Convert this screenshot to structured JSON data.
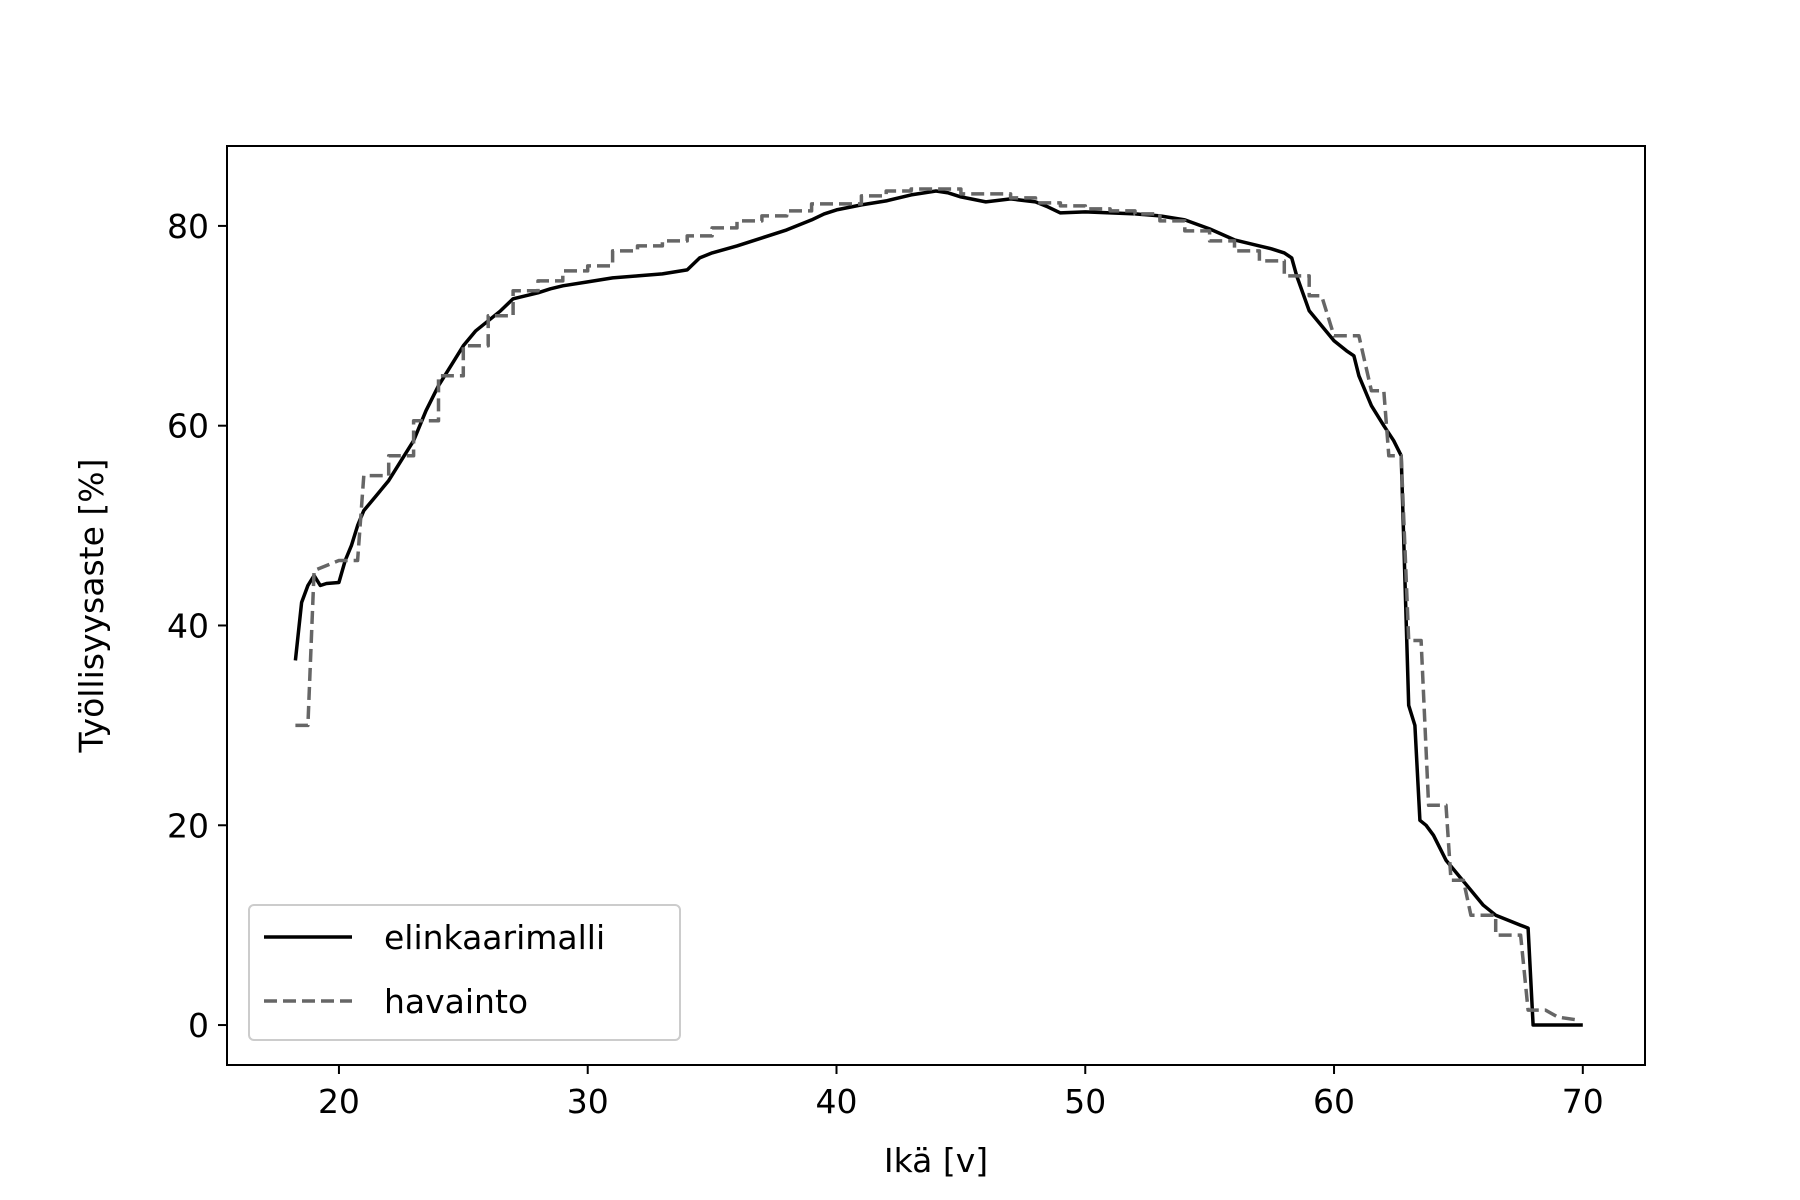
{
  "chart_data": {
    "type": "line",
    "xlabel": "Ikä [v]",
    "ylabel": "Työllisyysaste [%]",
    "xlim": [
      15.5,
      72.5
    ],
    "ylim": [
      -4,
      88
    ],
    "xticks": [
      20,
      30,
      40,
      50,
      60,
      70
    ],
    "yticks": [
      0,
      20,
      40,
      60,
      80
    ],
    "grid": false,
    "legend_position": "lower-left",
    "series": [
      {
        "name": "elinkaarimalli",
        "color": "#000000",
        "style": "solid",
        "points": [
          [
            18.25,
            36.5
          ],
          [
            18.5,
            42.3
          ],
          [
            18.75,
            44.0
          ],
          [
            19.0,
            45.0
          ],
          [
            19.25,
            44.0
          ],
          [
            19.5,
            44.2
          ],
          [
            20.0,
            44.3
          ],
          [
            20.25,
            46.5
          ],
          [
            20.5,
            48.0
          ],
          [
            20.75,
            50.0
          ],
          [
            21.0,
            51.5
          ],
          [
            21.5,
            53.0
          ],
          [
            22.0,
            54.5
          ],
          [
            22.5,
            56.5
          ],
          [
            23.0,
            58.5
          ],
          [
            23.5,
            61.5
          ],
          [
            24.0,
            64.0
          ],
          [
            24.5,
            66.0
          ],
          [
            25.0,
            68.0
          ],
          [
            25.5,
            69.5
          ],
          [
            26.0,
            70.5
          ],
          [
            26.5,
            71.5
          ],
          [
            27.0,
            72.7
          ],
          [
            27.5,
            73.0
          ],
          [
            28.0,
            73.3
          ],
          [
            28.5,
            73.7
          ],
          [
            29.0,
            74.0
          ],
          [
            30.0,
            74.4
          ],
          [
            31.0,
            74.8
          ],
          [
            32.0,
            75.0
          ],
          [
            33.0,
            75.2
          ],
          [
            34.0,
            75.6
          ],
          [
            34.5,
            76.8
          ],
          [
            35.0,
            77.3
          ],
          [
            36.0,
            78.0
          ],
          [
            37.0,
            78.8
          ],
          [
            38.0,
            79.6
          ],
          [
            39.0,
            80.6
          ],
          [
            39.5,
            81.2
          ],
          [
            40.0,
            81.6
          ],
          [
            41.0,
            82.1
          ],
          [
            42.0,
            82.5
          ],
          [
            43.0,
            83.1
          ],
          [
            44.0,
            83.5
          ],
          [
            44.5,
            83.3
          ],
          [
            45.0,
            82.9
          ],
          [
            46.0,
            82.4
          ],
          [
            47.0,
            82.7
          ],
          [
            48.0,
            82.4
          ],
          [
            48.5,
            81.9
          ],
          [
            49.0,
            81.3
          ],
          [
            50.0,
            81.4
          ],
          [
            51.0,
            81.3
          ],
          [
            52.0,
            81.2
          ],
          [
            53.0,
            81.0
          ],
          [
            54.0,
            80.6
          ],
          [
            55.0,
            79.7
          ],
          [
            56.0,
            78.6
          ],
          [
            57.0,
            78.0
          ],
          [
            57.5,
            77.7
          ],
          [
            58.0,
            77.3
          ],
          [
            58.3,
            76.8
          ],
          [
            58.5,
            75.0
          ],
          [
            59.0,
            71.5
          ],
          [
            60.0,
            68.5
          ],
          [
            60.5,
            67.5
          ],
          [
            60.8,
            67.0
          ],
          [
            61.0,
            65.0
          ],
          [
            61.5,
            62.0
          ],
          [
            62.0,
            60.0
          ],
          [
            62.4,
            58.5
          ],
          [
            62.7,
            57.0
          ],
          [
            63.0,
            32.0
          ],
          [
            63.25,
            30.0
          ],
          [
            63.45,
            20.5
          ],
          [
            63.7,
            20.0
          ],
          [
            64.0,
            19.0
          ],
          [
            64.5,
            16.5
          ],
          [
            65.0,
            15.0
          ],
          [
            65.5,
            13.5
          ],
          [
            66.0,
            12.0
          ],
          [
            66.5,
            11.0
          ],
          [
            67.0,
            10.5
          ],
          [
            67.5,
            10.0
          ],
          [
            67.8,
            9.7
          ],
          [
            68.0,
            0.0
          ],
          [
            68.5,
            0.0
          ],
          [
            70.0,
            0.0
          ]
        ]
      },
      {
        "name": "havainto",
        "color": "#666666",
        "style": "dashed",
        "points": [
          [
            18.25,
            30.0
          ],
          [
            18.75,
            30.0
          ],
          [
            19.0,
            45.5
          ],
          [
            20.0,
            46.5
          ],
          [
            20.75,
            46.5
          ],
          [
            21.0,
            55.0
          ],
          [
            22.0,
            55.0
          ],
          [
            22.0,
            57.0
          ],
          [
            23.0,
            57.0
          ],
          [
            23.0,
            60.5
          ],
          [
            24.0,
            60.5
          ],
          [
            24.0,
            65.0
          ],
          [
            25.0,
            65.0
          ],
          [
            25.0,
            68.0
          ],
          [
            26.0,
            68.0
          ],
          [
            26.0,
            71.0
          ],
          [
            27.0,
            71.0
          ],
          [
            27.0,
            73.5
          ],
          [
            28.0,
            73.5
          ],
          [
            28.0,
            74.5
          ],
          [
            29.0,
            74.5
          ],
          [
            29.0,
            75.5
          ],
          [
            30.0,
            75.5
          ],
          [
            30.0,
            76.0
          ],
          [
            31.0,
            76.0
          ],
          [
            31.0,
            77.5
          ],
          [
            32.0,
            77.5
          ],
          [
            32.0,
            78.0
          ],
          [
            33.0,
            78.0
          ],
          [
            33.0,
            78.5
          ],
          [
            34.0,
            78.5
          ],
          [
            34.0,
            79.0
          ],
          [
            35.0,
            79.0
          ],
          [
            35.0,
            79.8
          ],
          [
            36.0,
            79.8
          ],
          [
            36.0,
            80.5
          ],
          [
            37.0,
            80.5
          ],
          [
            37.0,
            81.0
          ],
          [
            38.0,
            81.0
          ],
          [
            38.0,
            81.5
          ],
          [
            39.0,
            81.5
          ],
          [
            39.0,
            82.2
          ],
          [
            41.0,
            82.2
          ],
          [
            41.0,
            83.0
          ],
          [
            42.0,
            83.0
          ],
          [
            42.0,
            83.5
          ],
          [
            43.0,
            83.5
          ],
          [
            43.0,
            83.7
          ],
          [
            45.0,
            83.7
          ],
          [
            45.0,
            83.2
          ],
          [
            47.0,
            83.2
          ],
          [
            47.0,
            82.8
          ],
          [
            48.0,
            82.8
          ],
          [
            48.0,
            82.3
          ],
          [
            49.0,
            82.3
          ],
          [
            49.0,
            82.0
          ],
          [
            50.0,
            82.0
          ],
          [
            50.0,
            81.7
          ],
          [
            51.0,
            81.7
          ],
          [
            51.0,
            81.5
          ],
          [
            52.0,
            81.5
          ],
          [
            52.0,
            81.2
          ],
          [
            53.0,
            81.2
          ],
          [
            53.0,
            80.5
          ],
          [
            54.0,
            80.5
          ],
          [
            54.0,
            79.5
          ],
          [
            55.0,
            79.5
          ],
          [
            55.0,
            78.5
          ],
          [
            56.0,
            78.5
          ],
          [
            56.0,
            77.5
          ],
          [
            57.0,
            77.5
          ],
          [
            57.0,
            76.5
          ],
          [
            58.0,
            76.5
          ],
          [
            58.0,
            75.0
          ],
          [
            59.0,
            75.0
          ],
          [
            59.0,
            73.0
          ],
          [
            59.5,
            73.0
          ],
          [
            60.0,
            69.0
          ],
          [
            61.0,
            69.0
          ],
          [
            61.5,
            63.5
          ],
          [
            62.0,
            63.5
          ],
          [
            62.2,
            57.0
          ],
          [
            62.7,
            57.0
          ],
          [
            63.0,
            38.5
          ],
          [
            63.5,
            38.5
          ],
          [
            63.8,
            22.0
          ],
          [
            64.5,
            22.0
          ],
          [
            64.7,
            14.5
          ],
          [
            65.2,
            14.5
          ],
          [
            65.5,
            11.0
          ],
          [
            66.5,
            11.0
          ],
          [
            66.5,
            9.0
          ],
          [
            67.5,
            9.0
          ],
          [
            67.8,
            1.5
          ],
          [
            68.5,
            1.5
          ],
          [
            69.0,
            0.8
          ],
          [
            69.8,
            0.5
          ]
        ]
      }
    ]
  }
}
